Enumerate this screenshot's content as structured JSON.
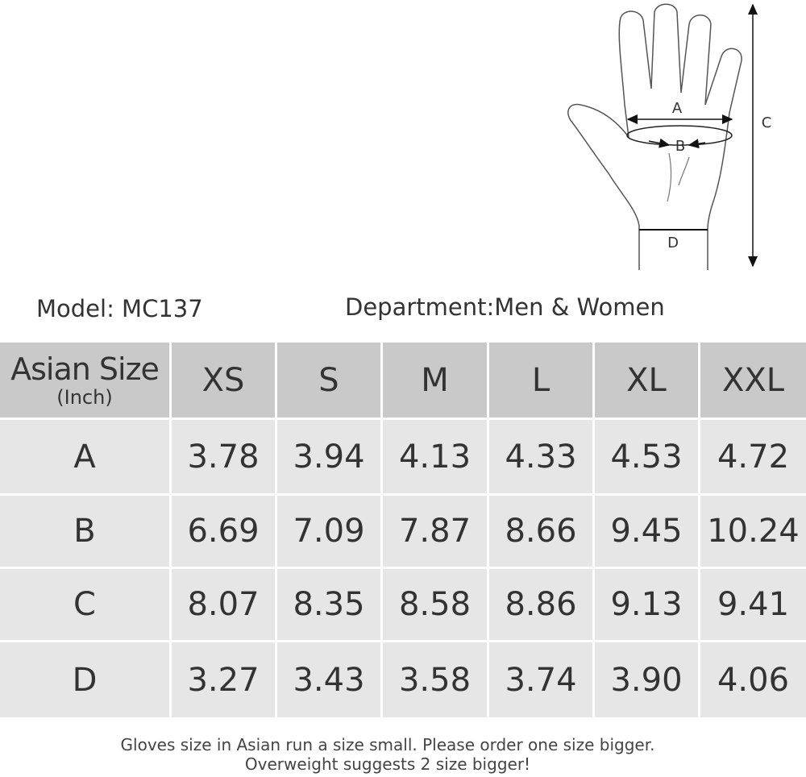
{
  "diagram": {
    "labels": [
      "A",
      "B",
      "C",
      "D"
    ]
  },
  "model": "Model: MC137",
  "department": "Department:Men & Women",
  "table": {
    "header": {
      "title": "Asian Size",
      "unit": "(Inch)",
      "sizes": [
        "XS",
        "S",
        "M",
        "L",
        "XL",
        "XXL"
      ]
    },
    "rows": [
      {
        "label": "A",
        "values": [
          "3.78",
          "3.94",
          "4.13",
          "4.33",
          "4.53",
          "4.72"
        ]
      },
      {
        "label": "B",
        "values": [
          "6.69",
          "7.09",
          "7.87",
          "8.66",
          "9.45",
          "10.24"
        ]
      },
      {
        "label": "C",
        "values": [
          "8.07",
          "8.35",
          "8.58",
          "8.86",
          "9.13",
          "9.41"
        ]
      },
      {
        "label": "D",
        "values": [
          "3.27",
          "3.43",
          "3.58",
          "3.74",
          "3.90",
          "4.06"
        ]
      }
    ]
  },
  "footer": [
    "Gloves size in Asian run a size small. Please order one size bigger.",
    "Overweight suggests 2 size bigger!"
  ]
}
